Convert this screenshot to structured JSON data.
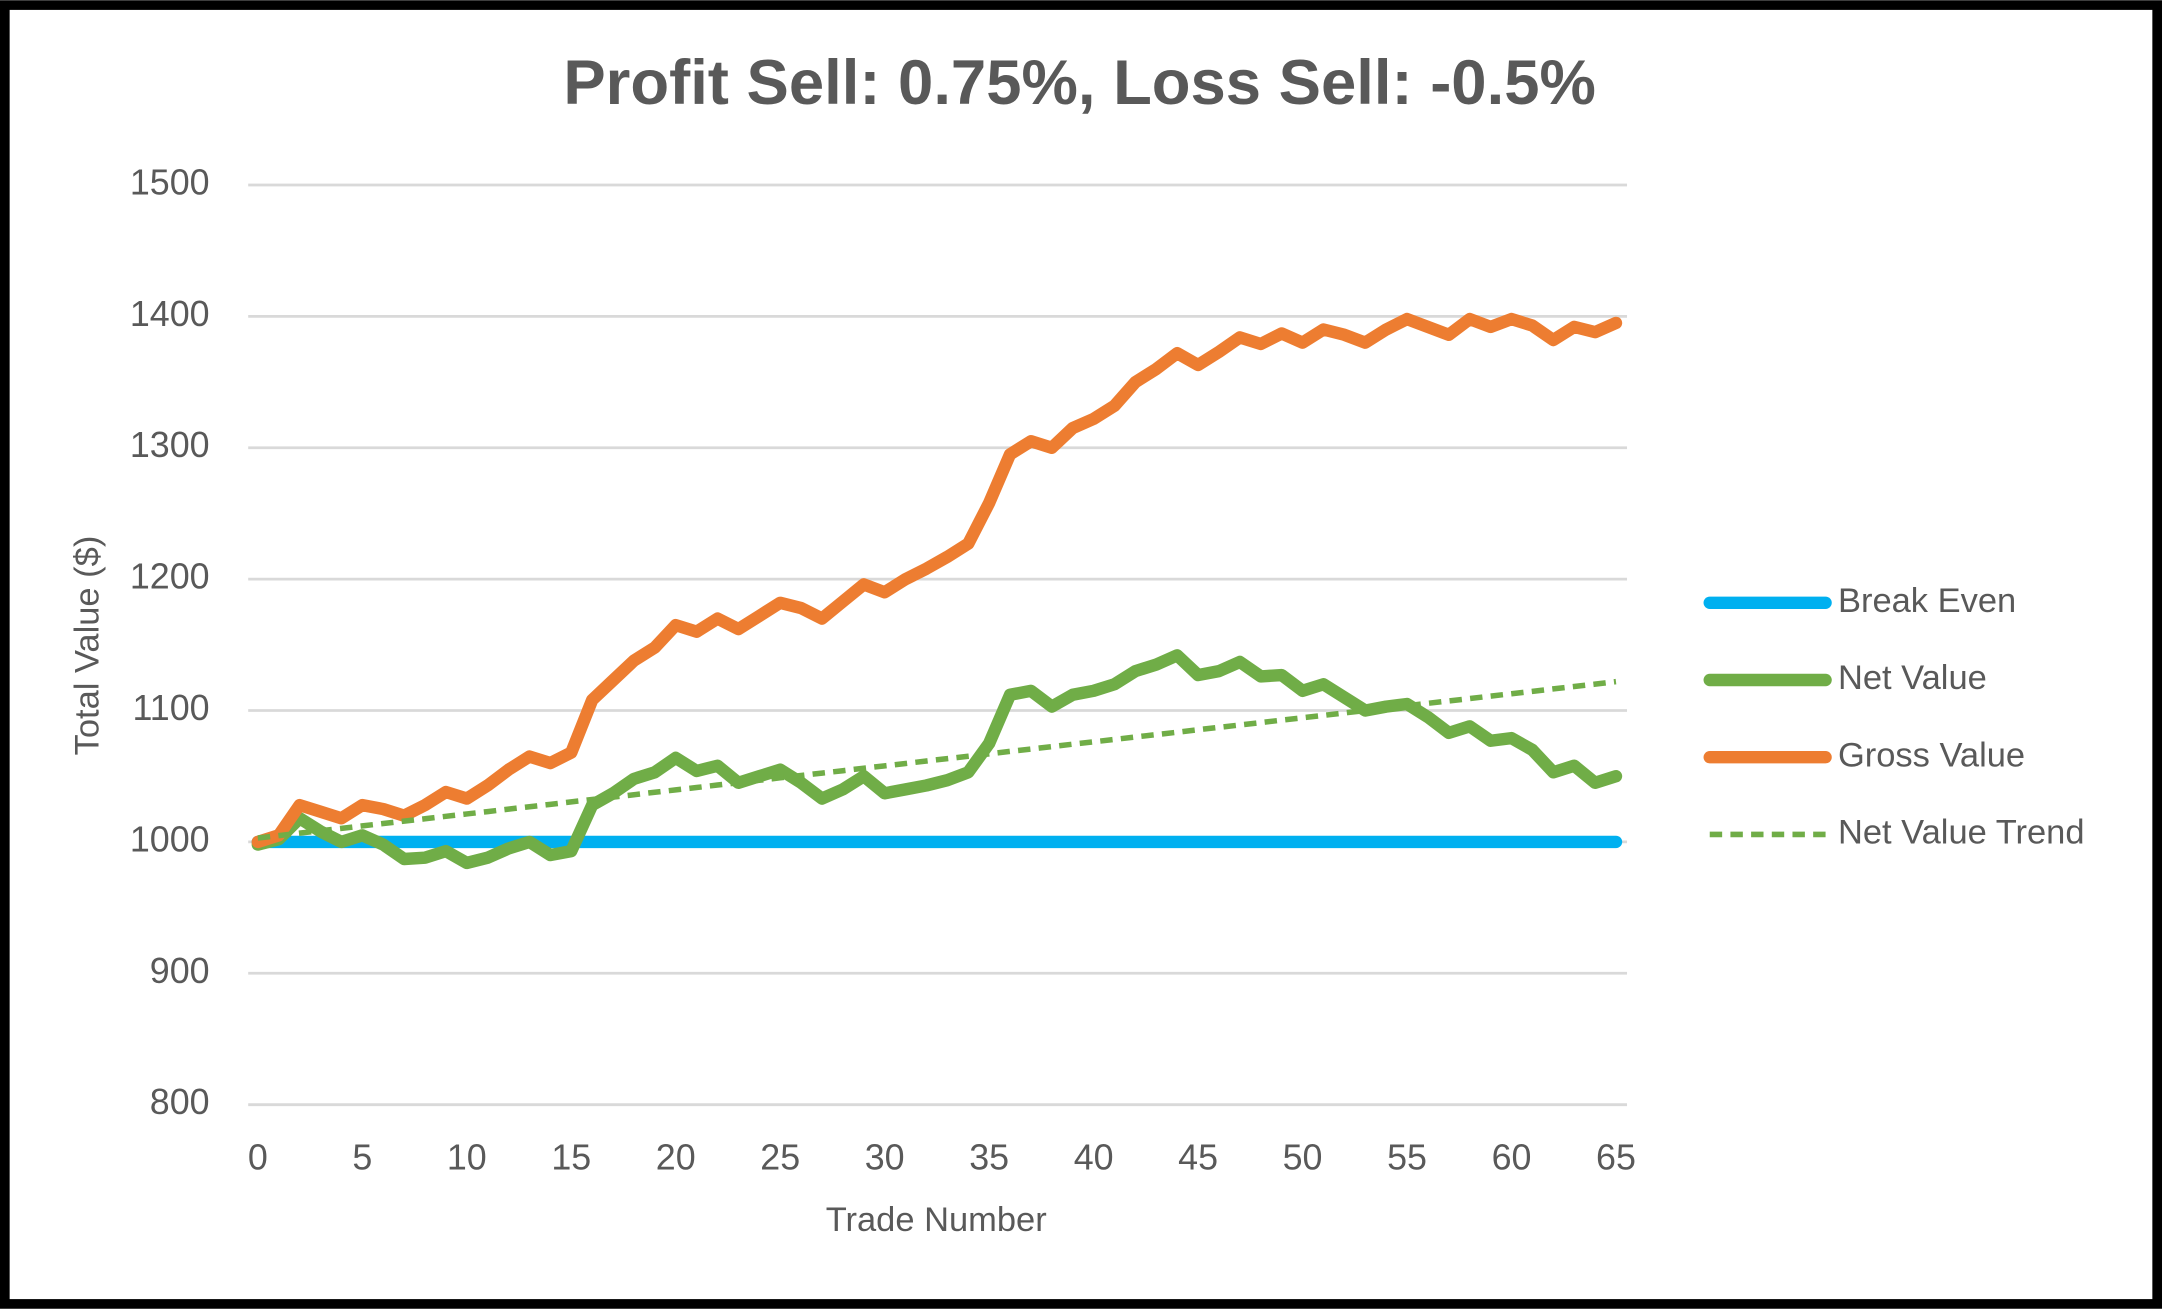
{
  "chart_data": {
    "type": "line",
    "title": "Profit Sell: 0.75%, Loss Sell: -0.5%",
    "xlabel": "Trade Number",
    "ylabel": "Total Value ($)",
    "x": [
      0,
      1,
      2,
      3,
      4,
      5,
      6,
      7,
      8,
      9,
      10,
      11,
      12,
      13,
      14,
      15,
      16,
      17,
      18,
      19,
      20,
      21,
      22,
      23,
      24,
      25,
      26,
      27,
      28,
      29,
      30,
      31,
      32,
      33,
      34,
      35,
      36,
      37,
      38,
      39,
      40,
      41,
      42,
      43,
      44,
      45,
      46,
      47,
      48,
      49,
      50,
      51,
      52,
      53,
      54,
      55,
      56,
      57,
      58,
      59,
      60,
      61,
      62,
      63,
      64,
      65
    ],
    "series": [
      {
        "name": "Break Even",
        "color": "#00b0f0",
        "dashed": false,
        "values": [
          1000,
          1000,
          1000,
          1000,
          1000,
          1000,
          1000,
          1000,
          1000,
          1000,
          1000,
          1000,
          1000,
          1000,
          1000,
          1000,
          1000,
          1000,
          1000,
          1000,
          1000,
          1000,
          1000,
          1000,
          1000,
          1000,
          1000,
          1000,
          1000,
          1000,
          1000,
          1000,
          1000,
          1000,
          1000,
          1000,
          1000,
          1000,
          1000,
          1000,
          1000,
          1000,
          1000,
          1000,
          1000,
          1000,
          1000,
          1000,
          1000,
          1000,
          1000,
          1000,
          1000,
          1000,
          1000,
          1000,
          1000,
          1000,
          1000,
          1000,
          1000,
          1000,
          1000,
          1000,
          1000,
          1000
        ]
      },
      {
        "name": "Net Value",
        "color": "#70ad47",
        "dashed": false,
        "values": [
          998,
          1002,
          1018,
          1008,
          1000,
          1005,
          998,
          987,
          988,
          993,
          984,
          988,
          995,
          1000,
          990,
          993,
          1028,
          1037,
          1048,
          1053,
          1064,
          1054,
          1058,
          1045,
          1050,
          1055,
          1045,
          1033,
          1040,
          1050,
          1037,
          1040,
          1043,
          1047,
          1053,
          1075,
          1112,
          1115,
          1103,
          1112,
          1115,
          1120,
          1130,
          1135,
          1142,
          1127,
          1130,
          1137,
          1126,
          1127,
          1115,
          1120,
          1110,
          1100,
          1103,
          1105,
          1095,
          1083,
          1088,
          1077,
          1079,
          1070,
          1053,
          1058,
          1045,
          1050
        ]
      },
      {
        "name": "Gross Value",
        "color": "#ed7d31",
        "dashed": false,
        "values": [
          1000,
          1005,
          1028,
          1023,
          1018,
          1028,
          1025,
          1020,
          1028,
          1038,
          1033,
          1043,
          1055,
          1065,
          1060,
          1068,
          1108,
          1123,
          1138,
          1148,
          1165,
          1160,
          1170,
          1162,
          1172,
          1182,
          1178,
          1170,
          1183,
          1196,
          1190,
          1200,
          1208,
          1217,
          1227,
          1258,
          1295,
          1305,
          1300,
          1315,
          1322,
          1332,
          1350,
          1360,
          1372,
          1363,
          1373,
          1384,
          1379,
          1387,
          1380,
          1390,
          1386,
          1380,
          1390,
          1398,
          1392,
          1386,
          1398,
          1392,
          1398,
          1393,
          1382,
          1392,
          1388,
          1395
        ]
      },
      {
        "name": "Net Value Trend",
        "color": "#70ad47",
        "dashed": true,
        "values": [
          1003.0,
          1004.8,
          1006.7,
          1008.5,
          1010.3,
          1012.2,
          1014.0,
          1015.8,
          1017.6,
          1019.5,
          1021.3,
          1023.1,
          1025.0,
          1026.8,
          1028.6,
          1030.5,
          1032.3,
          1034.1,
          1035.9,
          1037.8,
          1039.6,
          1041.4,
          1043.3,
          1045.1,
          1046.9,
          1048.8,
          1050.6,
          1052.4,
          1054.2,
          1056.1,
          1057.9,
          1059.7,
          1061.6,
          1063.4,
          1065.2,
          1067.0,
          1068.9,
          1070.7,
          1072.5,
          1074.4,
          1076.2,
          1078.0,
          1079.9,
          1081.7,
          1083.5,
          1085.4,
          1087.2,
          1089.0,
          1090.8,
          1092.7,
          1094.5,
          1096.3,
          1098.2,
          1100.0,
          1101.8,
          1103.6,
          1105.5,
          1107.3,
          1109.1,
          1111.0,
          1112.8,
          1114.6,
          1116.5,
          1118.3,
          1120.1,
          1122.0
        ]
      }
    ],
    "xlim": [
      0,
      65
    ],
    "xticks": [
      0,
      5,
      10,
      15,
      20,
      25,
      30,
      35,
      40,
      45,
      50,
      55,
      60,
      65
    ],
    "ylim": [
      800,
      1500
    ],
    "yticks": [
      800,
      900,
      1000,
      1100,
      1200,
      1300,
      1400,
      1500
    ],
    "grid": true,
    "legend": "right"
  }
}
